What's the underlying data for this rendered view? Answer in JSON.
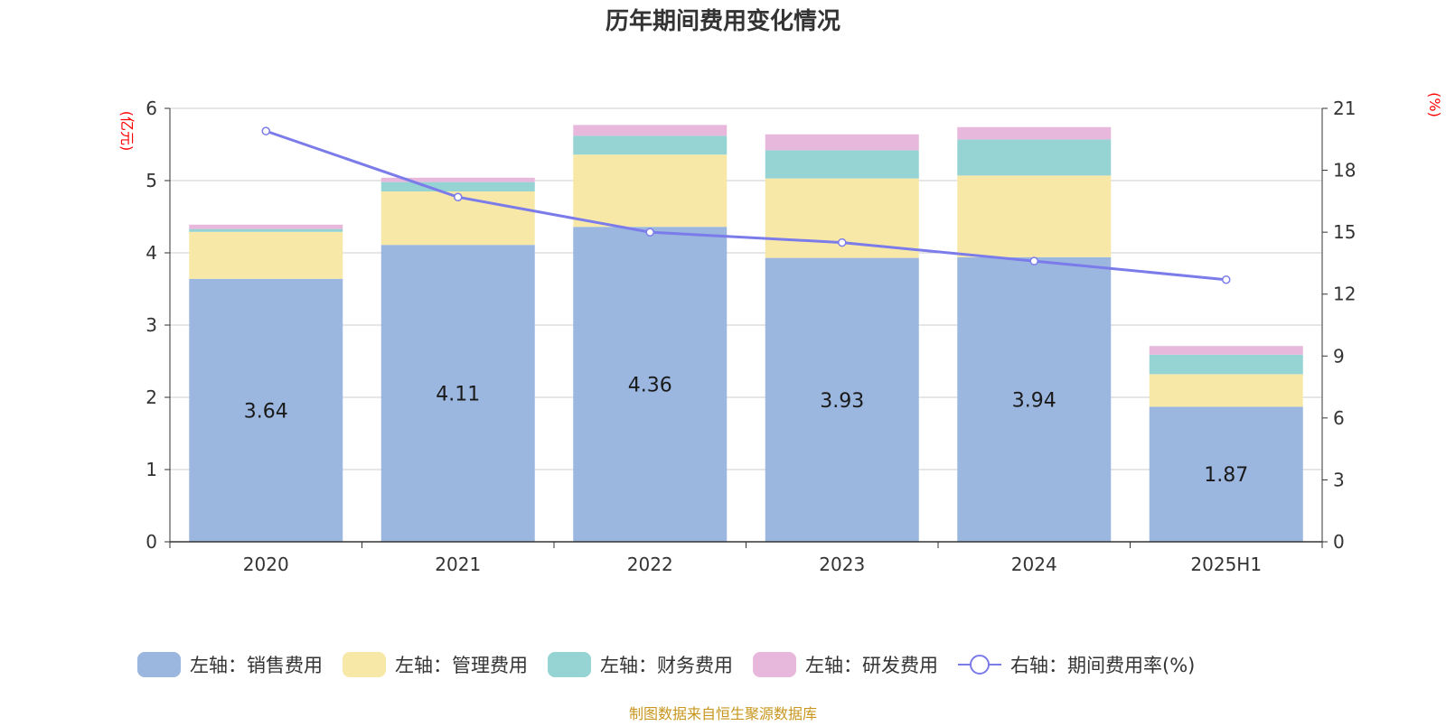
{
  "chart_data": {
    "type": "bar",
    "stacked": true,
    "title": "历年期间费用变化情况",
    "categories": [
      "2020",
      "2021",
      "2022",
      "2023",
      "2024",
      "2025H1"
    ],
    "left_axis": {
      "unit_label": "(亿元)",
      "ylim": [
        0,
        6
      ],
      "ticks": [
        "0",
        "1",
        "2",
        "3",
        "4",
        "5",
        "6"
      ]
    },
    "right_axis": {
      "unit_label": "(%)",
      "ylim": [
        0,
        21
      ],
      "ticks": [
        "0",
        "3",
        "6",
        "9",
        "12",
        "15",
        "18",
        "21"
      ]
    },
    "series": [
      {
        "name": "左轴：销售费用",
        "axis": "left",
        "type": "bar",
        "color": "#9bb7e0",
        "values": [
          3.64,
          4.11,
          4.36,
          3.93,
          3.94,
          1.87
        ],
        "labels": [
          "3.64",
          "4.11",
          "4.36",
          "3.93",
          "3.94",
          "1.87"
        ]
      },
      {
        "name": "左轴：管理费用",
        "axis": "left",
        "type": "bar",
        "color": "#f7e8a8",
        "values": [
          0.65,
          0.74,
          1.0,
          1.1,
          1.13,
          0.45
        ]
      },
      {
        "name": "左轴：财务费用",
        "axis": "left",
        "type": "bar",
        "color": "#96d4d4",
        "values": [
          0.04,
          0.13,
          0.26,
          0.39,
          0.5,
          0.27
        ]
      },
      {
        "name": "左轴：研发费用",
        "axis": "left",
        "type": "bar",
        "color": "#e8b8dc",
        "values": [
          0.06,
          0.06,
          0.15,
          0.22,
          0.17,
          0.12
        ]
      },
      {
        "name": "右轴：期间费用率(%)",
        "axis": "right",
        "type": "line",
        "color": "#7b7bea",
        "values": [
          19.9,
          16.7,
          15.0,
          14.5,
          13.6,
          12.7
        ]
      }
    ],
    "grid": true,
    "legend_position": "bottom",
    "source": "制图数据来自恒生聚源数据库"
  }
}
